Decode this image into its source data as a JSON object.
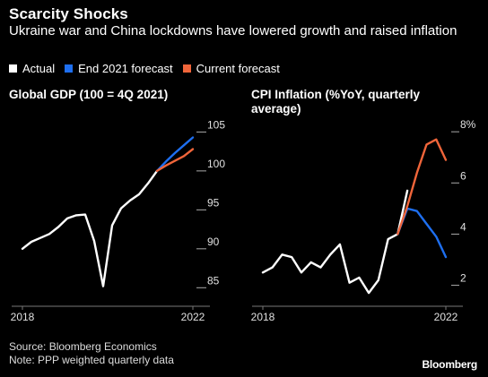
{
  "header": {
    "title": "Scarcity Shocks",
    "subtitle": "Ukraine war and China lockdowns have lowered growth and raised inflation"
  },
  "legend": [
    {
      "label": "Actual",
      "color": "#ffffff"
    },
    {
      "label": "End 2021 forecast",
      "color": "#1e6ff0"
    },
    {
      "label": "Current forecast",
      "color": "#f0653a"
    }
  ],
  "footer": {
    "source": "Source: Bloomberg Economics",
    "note": "Note: PPP weighted quarterly data",
    "brand": "Bloomberg"
  },
  "chart_data": [
    {
      "type": "line",
      "title": "Global GDP (100 = 4Q 2021)",
      "xlabel": "",
      "ylabel": "",
      "x_tick_labels": [
        "2018",
        "2022"
      ],
      "y_ticks": [
        85,
        90,
        95,
        100,
        105
      ],
      "y_tick_labels": [
        "85",
        "90",
        "95",
        "100",
        "105"
      ],
      "ylim": [
        84,
        107
      ],
      "grid": false,
      "series": [
        {
          "name": "Actual",
          "x": [
            0,
            1,
            2,
            3,
            4,
            5,
            6,
            7,
            8,
            9,
            10,
            11,
            12,
            13,
            14,
            15
          ],
          "values": [
            90.0,
            90.9,
            91.4,
            91.9,
            92.8,
            93.9,
            94.3,
            94.4,
            91.0,
            85.2,
            93.0,
            95.2,
            96.2,
            97.0,
            98.4,
            100.0
          ]
        },
        {
          "name": "End 2021 forecast",
          "x": [
            15,
            16,
            17,
            18,
            19
          ],
          "values": [
            100.0,
            101.2,
            102.3,
            103.3,
            104.3
          ]
        },
        {
          "name": "Current forecast",
          "x": [
            15,
            16,
            17,
            18,
            19
          ],
          "values": [
            100.0,
            100.7,
            101.3,
            101.9,
            102.8
          ]
        }
      ]
    },
    {
      "type": "line",
      "title": "CPI Inflation (%YoY, quarterly average)",
      "xlabel": "",
      "ylabel": "",
      "x_tick_labels": [
        "2018",
        "2022"
      ],
      "y_ticks": [
        2,
        4,
        6,
        8
      ],
      "y_tick_labels": [
        "2",
        "4",
        "6",
        "8%"
      ],
      "ylim": [
        1.6,
        8.6
      ],
      "grid": false,
      "series": [
        {
          "name": "Actual",
          "x": [
            0,
            1,
            2,
            3,
            4,
            5,
            6,
            7,
            8,
            9,
            10,
            11,
            12,
            13,
            14,
            15
          ],
          "values": [
            2.5,
            2.7,
            3.2,
            3.1,
            2.5,
            2.9,
            2.7,
            3.2,
            3.6,
            2.1,
            2.3,
            1.7,
            2.2,
            3.8,
            4.0,
            5.7
          ]
        },
        {
          "name": "End 2021 forecast",
          "x": [
            14,
            15,
            16,
            17,
            18,
            19
          ],
          "values": [
            4.0,
            5.0,
            4.9,
            4.4,
            3.9,
            3.1
          ]
        },
        {
          "name": "Current forecast",
          "x": [
            14,
            15,
            16,
            17,
            18,
            19
          ],
          "values": [
            4.0,
            5.1,
            6.4,
            7.5,
            7.7,
            6.9
          ]
        }
      ]
    }
  ]
}
